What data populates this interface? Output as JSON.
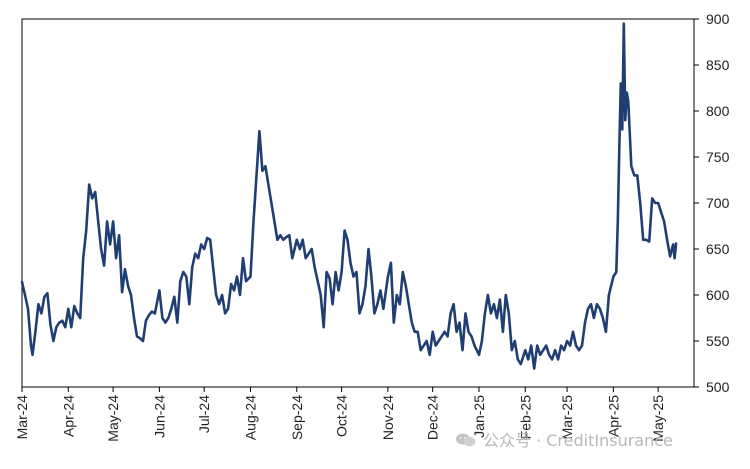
{
  "chart_data": {
    "type": "line",
    "ylim": [
      500,
      900
    ],
    "yticks": [
      500,
      550,
      600,
      650,
      700,
      750,
      800,
      850,
      900
    ],
    "xlim": [
      "2024-03-01",
      "2025-05-25"
    ],
    "xticks": [
      {
        "date": "2024-03-01",
        "label": "Mar-24"
      },
      {
        "date": "2024-04-01",
        "label": "Apr-24"
      },
      {
        "date": "2024-05-01",
        "label": "May-24"
      },
      {
        "date": "2024-06-01",
        "label": "Jun-24"
      },
      {
        "date": "2024-07-01",
        "label": "Jul-24"
      },
      {
        "date": "2024-08-01",
        "label": "Aug-24"
      },
      {
        "date": "2024-09-01",
        "label": "Sep-24"
      },
      {
        "date": "2024-10-01",
        "label": "Oct-24"
      },
      {
        "date": "2024-11-01",
        "label": "Nov-24"
      },
      {
        "date": "2024-12-01",
        "label": "Dec-24"
      },
      {
        "date": "2025-01-01",
        "label": "Jan-25"
      },
      {
        "date": "2025-02-01",
        "label": "Feb-25"
      },
      {
        "date": "2025-03-01",
        "label": "Mar-25"
      },
      {
        "date": "2025-04-01",
        "label": "Apr-25"
      },
      {
        "date": "2025-05-01",
        "label": "May-25"
      }
    ],
    "grid": false,
    "line_color": "#1f3f73",
    "series": [
      {
        "x": [
          "2024-03-01",
          "2024-03-03",
          "2024-03-05",
          "2024-03-07",
          "2024-03-08",
          "2024-03-10",
          "2024-03-12",
          "2024-03-14",
          "2024-03-16",
          "2024-03-18",
          "2024-03-20",
          "2024-03-22",
          "2024-03-24",
          "2024-03-26",
          "2024-03-28",
          "2024-03-30",
          "2024-04-01",
          "2024-04-03",
          "2024-04-05",
          "2024-04-07",
          "2024-04-09",
          "2024-04-11",
          "2024-04-13",
          "2024-04-15",
          "2024-04-17",
          "2024-04-19",
          "2024-04-21",
          "2024-04-23",
          "2024-04-25",
          "2024-04-27",
          "2024-04-29",
          "2024-05-01",
          "2024-05-03",
          "2024-05-05",
          "2024-05-07",
          "2024-05-09",
          "2024-05-11",
          "2024-05-13",
          "2024-05-15",
          "2024-05-17",
          "2024-05-19",
          "2024-05-21",
          "2024-05-23",
          "2024-05-25",
          "2024-05-27",
          "2024-05-29",
          "2024-06-01",
          "2024-06-03",
          "2024-06-05",
          "2024-06-07",
          "2024-06-09",
          "2024-06-11",
          "2024-06-13",
          "2024-06-15",
          "2024-06-17",
          "2024-06-19",
          "2024-06-21",
          "2024-06-23",
          "2024-06-25",
          "2024-06-27",
          "2024-06-29",
          "2024-07-01",
          "2024-07-03",
          "2024-07-05",
          "2024-07-07",
          "2024-07-09",
          "2024-07-11",
          "2024-07-13",
          "2024-07-15",
          "2024-07-17",
          "2024-07-19",
          "2024-07-21",
          "2024-07-23",
          "2024-07-25",
          "2024-07-27",
          "2024-07-29",
          "2024-08-01",
          "2024-08-03",
          "2024-08-05",
          "2024-08-07",
          "2024-08-09",
          "2024-08-11",
          "2024-08-13",
          "2024-08-15",
          "2024-08-17",
          "2024-08-19",
          "2024-08-21",
          "2024-08-23",
          "2024-08-25",
          "2024-08-27",
          "2024-08-29",
          "2024-09-01",
          "2024-09-03",
          "2024-09-05",
          "2024-09-07",
          "2024-09-09",
          "2024-09-11",
          "2024-09-13",
          "2024-09-15",
          "2024-09-17",
          "2024-09-19",
          "2024-09-21",
          "2024-09-23",
          "2024-09-25",
          "2024-09-27",
          "2024-09-29",
          "2024-10-01",
          "2024-10-03",
          "2024-10-05",
          "2024-10-07",
          "2024-10-09",
          "2024-10-11",
          "2024-10-13",
          "2024-10-15",
          "2024-10-17",
          "2024-10-19",
          "2024-10-21",
          "2024-10-23",
          "2024-10-25",
          "2024-10-27",
          "2024-10-29",
          "2024-11-01",
          "2024-11-03",
          "2024-11-05",
          "2024-11-07",
          "2024-11-09",
          "2024-11-11",
          "2024-11-13",
          "2024-11-15",
          "2024-11-17",
          "2024-11-19",
          "2024-11-21",
          "2024-11-23",
          "2024-11-25",
          "2024-11-27",
          "2024-11-29",
          "2024-12-01",
          "2024-12-03",
          "2024-12-05",
          "2024-12-07",
          "2024-12-09",
          "2024-12-11",
          "2024-12-13",
          "2024-12-15",
          "2024-12-17",
          "2024-12-19",
          "2024-12-21",
          "2024-12-23",
          "2024-12-25",
          "2024-12-27",
          "2024-12-29",
          "2025-01-01",
          "2025-01-03",
          "2025-01-05",
          "2025-01-07",
          "2025-01-09",
          "2025-01-11",
          "2025-01-13",
          "2025-01-15",
          "2025-01-17",
          "2025-01-19",
          "2025-01-21",
          "2025-01-23",
          "2025-01-25",
          "2025-01-27",
          "2025-01-29",
          "2025-02-01",
          "2025-02-03",
          "2025-02-05",
          "2025-02-07",
          "2025-02-09",
          "2025-02-11",
          "2025-02-13",
          "2025-02-15",
          "2025-02-17",
          "2025-02-19",
          "2025-02-21",
          "2025-02-23",
          "2025-02-25",
          "2025-02-27",
          "2025-03-01",
          "2025-03-03",
          "2025-03-05",
          "2025-03-07",
          "2025-03-09",
          "2025-03-11",
          "2025-03-13",
          "2025-03-15",
          "2025-03-17",
          "2025-03-19",
          "2025-03-21",
          "2025-03-23",
          "2025-03-25",
          "2025-03-27",
          "2025-03-29",
          "2025-04-01",
          "2025-04-03",
          "2025-04-04",
          "2025-04-05",
          "2025-04-06",
          "2025-04-07",
          "2025-04-08",
          "2025-04-09",
          "2025-04-10",
          "2025-04-11",
          "2025-04-13",
          "2025-04-15",
          "2025-04-17",
          "2025-04-19",
          "2025-04-21",
          "2025-04-23",
          "2025-04-25",
          "2025-04-27",
          "2025-04-29",
          "2025-05-01",
          "2025-05-03",
          "2025-05-05",
          "2025-05-07",
          "2025-05-09",
          "2025-05-11",
          "2025-05-12",
          "2025-05-13"
        ],
        "y": [
          614,
          600,
          585,
          545,
          535,
          560,
          590,
          580,
          598,
          602,
          568,
          550,
          565,
          570,
          572,
          565,
          585,
          565,
          588,
          580,
          575,
          640,
          670,
          720,
          705,
          712,
          680,
          650,
          632,
          680,
          655,
          680,
          640,
          665,
          603,
          628,
          610,
          600,
          575,
          555,
          553,
          550,
          572,
          578,
          582,
          580,
          605,
          575,
          570,
          575,
          585,
          598,
          570,
          615,
          625,
          620,
          590,
          630,
          645,
          640,
          655,
          650,
          662,
          660,
          630,
          600,
          590,
          600,
          580,
          585,
          612,
          605,
          620,
          600,
          640,
          615,
          620,
          680,
          730,
          778,
          735,
          740,
          720,
          700,
          680,
          660,
          665,
          660,
          663,
          665,
          640,
          660,
          650,
          660,
          640,
          645,
          650,
          630,
          615,
          600,
          565,
          625,
          618,
          590,
          625,
          605,
          625,
          670,
          660,
          635,
          620,
          625,
          580,
          590,
          610,
          650,
          620,
          580,
          590,
          605,
          585,
          620,
          635,
          570,
          600,
          590,
          625,
          610,
          590,
          570,
          560,
          560,
          540,
          545,
          550,
          535,
          560,
          545,
          550,
          555,
          560,
          555,
          580,
          590,
          560,
          570,
          540,
          580,
          560,
          555,
          545,
          535,
          550,
          580,
          600,
          580,
          590,
          575,
          595,
          560,
          600,
          580,
          540,
          550,
          530,
          525,
          540,
          530,
          545,
          520,
          545,
          535,
          540,
          545,
          535,
          530,
          540,
          530,
          545,
          540,
          550,
          545,
          560,
          545,
          540,
          545,
          570,
          585,
          590,
          575,
          590,
          585,
          575,
          560,
          600,
          620,
          625,
          680,
          760,
          830,
          780,
          895,
          790,
          820,
          810,
          740,
          730,
          730,
          700,
          660,
          660,
          658,
          705,
          700,
          700,
          690,
          680,
          660,
          642,
          655,
          640,
          656
        ]
      }
    ]
  },
  "watermark": {
    "text": "公众号 · CreditInsurance",
    "icon": "wechat-icon"
  }
}
